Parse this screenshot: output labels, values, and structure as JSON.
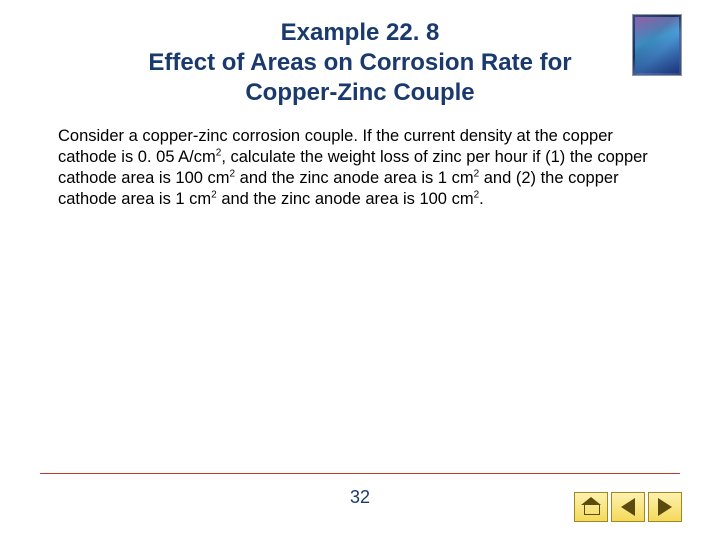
{
  "title_line1": "Example 22. 8",
  "title_line2": "Effect of Areas on Corrosion Rate for Copper-Zinc Couple",
  "body_html": "Consider a copper-zinc corrosion couple. If the current density at the copper cathode is 0. 05 A/cm<sup>2</sup>, calculate the weight loss of zinc per hour if (1) the copper cathode area is 100 cm<sup>2</sup> and the zinc anode area is 1 cm<sup>2</sup> and (2) the copper cathode area is 1 cm<sup>2</sup> and the zinc anode area is 100 cm<sup>2</sup>.",
  "page_number": "32",
  "colors": {
    "title_color": "#1a3a6e",
    "rule_color": "#c04030",
    "nav_bg": "#f5d95a",
    "background": "#ffffff"
  },
  "nav": {
    "home": "home-icon",
    "prev": "arrow-left",
    "next": "arrow-right"
  }
}
